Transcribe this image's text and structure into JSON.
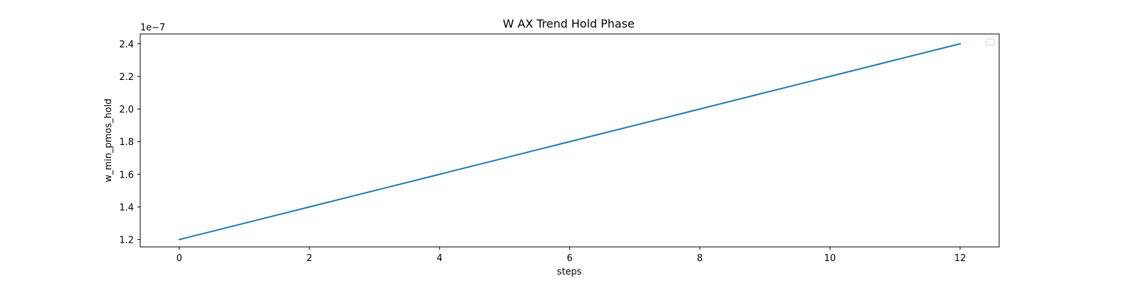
{
  "chart_data": {
    "type": "line",
    "title": "W AX Trend Hold Phase",
    "xlabel": "steps",
    "ylabel": "w_min_pmos_hold",
    "y_offset_label": "1e−7",
    "xlim": [
      -0.6,
      12.6
    ],
    "ylim": [
      1.155,
      2.46
    ],
    "x_ticks": [
      0,
      2,
      4,
      6,
      8,
      10,
      12
    ],
    "x_tick_labels": [
      "0",
      "2",
      "4",
      "6",
      "8",
      "10",
      "12"
    ],
    "y_ticks": [
      1.2,
      1.4,
      1.6,
      1.8,
      2.0,
      2.2,
      2.4
    ],
    "y_tick_labels": [
      "1.2",
      "1.4",
      "1.6",
      "1.8",
      "2.0",
      "2.2",
      "2.4"
    ],
    "grid": false,
    "legend": "top-right",
    "series": [
      {
        "color": "#1f77b4",
        "x": [
          0,
          1,
          2,
          3,
          4,
          5,
          6,
          7,
          8,
          9,
          10,
          11,
          12
        ],
        "y": [
          1.2,
          1.3,
          1.4,
          1.5,
          1.6,
          1.7,
          1.8,
          1.9,
          2.0,
          2.1,
          2.2,
          2.3,
          2.4
        ]
      }
    ]
  }
}
